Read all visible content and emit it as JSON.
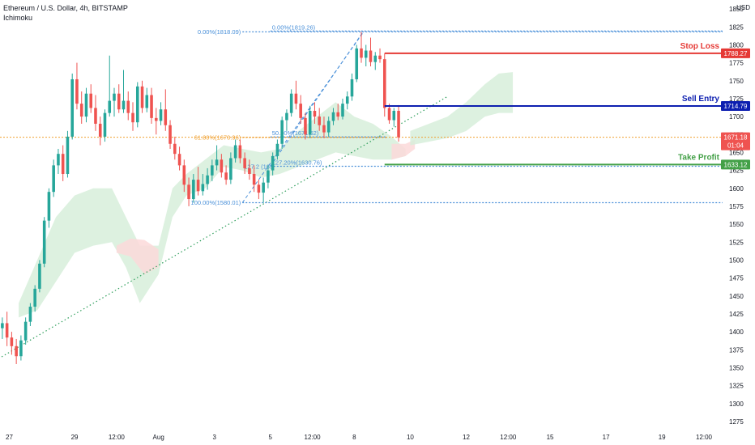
{
  "header": {
    "title": "Ethereum / U.S. Dollar, 4h, BITSTAMP",
    "indicator": "Ichimoku",
    "currency": "USD"
  },
  "colors": {
    "up": "#26a69a",
    "down": "#ef5350",
    "stop_loss": "#e53935",
    "sell_entry": "#0d1fb0",
    "take_profit": "#43a047",
    "fib": "#4a90d9",
    "fib_618": "#f0a030",
    "trend": "#2e9e5b",
    "cloud_bull": "#d7eedb",
    "cloud_bear": "#fcd9d9",
    "axis_text": "#131722",
    "price_tag": "#ef5350"
  },
  "chart_data": {
    "type": "candlestick",
    "y_axis": {
      "range": [
        1262.5,
        1862.5
      ],
      "ticks": [
        1850,
        1825,
        1800,
        1775,
        1750,
        1725,
        1700,
        1675,
        1650,
        1625,
        1600,
        1575,
        1550,
        1525,
        1500,
        1475,
        1450,
        1425,
        1400,
        1375,
        1350,
        1325,
        1300,
        1275
      ]
    },
    "x_axis": {
      "range": [
        0,
        155
      ],
      "ticks": [
        {
          "label": "27",
          "x": 2
        },
        {
          "label": "29",
          "x": 16
        },
        {
          "label": "12:00",
          "x": 25
        },
        {
          "label": "Aug",
          "x": 34
        },
        {
          "label": "3",
          "x": 46
        },
        {
          "label": "5",
          "x": 58
        },
        {
          "label": "12:00",
          "x": 67
        },
        {
          "label": "8",
          "x": 76
        },
        {
          "label": "10",
          "x": 88
        },
        {
          "label": "12",
          "x": 100
        },
        {
          "label": "12:00",
          "x": 109
        },
        {
          "label": "15",
          "x": 118
        },
        {
          "label": "17",
          "x": 130
        },
        {
          "label": "19",
          "x": 142
        },
        {
          "label": "12:00",
          "x": 151
        }
      ]
    },
    "candles": [
      [
        1405,
        1420,
        1390,
        1412
      ],
      [
        1412,
        1428,
        1380,
        1392
      ],
      [
        1392,
        1400,
        1368,
        1380
      ],
      [
        1380,
        1390,
        1355,
        1366
      ],
      [
        1366,
        1395,
        1360,
        1388
      ],
      [
        1388,
        1420,
        1382,
        1414
      ],
      [
        1414,
        1440,
        1408,
        1435
      ],
      [
        1435,
        1465,
        1428,
        1460
      ],
      [
        1460,
        1500,
        1455,
        1495
      ],
      [
        1495,
        1560,
        1490,
        1555
      ],
      [
        1555,
        1600,
        1545,
        1595
      ],
      [
        1595,
        1640,
        1588,
        1632
      ],
      [
        1632,
        1655,
        1620,
        1648
      ],
      [
        1648,
        1660,
        1610,
        1620
      ],
      [
        1620,
        1680,
        1615,
        1672
      ],
      [
        1672,
        1760,
        1668,
        1752
      ],
      [
        1752,
        1775,
        1710,
        1718
      ],
      [
        1718,
        1735,
        1690,
        1700
      ],
      [
        1700,
        1740,
        1692,
        1732
      ],
      [
        1732,
        1745,
        1705,
        1712
      ],
      [
        1712,
        1730,
        1680,
        1690
      ],
      [
        1690,
        1700,
        1660,
        1672
      ],
      [
        1672,
        1710,
        1665,
        1705
      ],
      [
        1705,
        1785,
        1700,
        1722
      ],
      [
        1722,
        1740,
        1700,
        1732
      ],
      [
        1732,
        1745,
        1705,
        1710
      ],
      [
        1710,
        1765,
        1705,
        1722
      ],
      [
        1722,
        1735,
        1695,
        1705
      ],
      [
        1705,
        1720,
        1680,
        1692
      ],
      [
        1692,
        1748,
        1685,
        1742
      ],
      [
        1742,
        1750,
        1705,
        1712
      ],
      [
        1712,
        1740,
        1706,
        1730
      ],
      [
        1730,
        1740,
        1690,
        1698
      ],
      [
        1698,
        1712,
        1675,
        1694
      ],
      [
        1694,
        1720,
        1688,
        1710
      ],
      [
        1710,
        1738,
        1680,
        1688
      ],
      [
        1688,
        1695,
        1655,
        1662
      ],
      [
        1662,
        1672,
        1640,
        1648
      ],
      [
        1648,
        1658,
        1625,
        1632
      ],
      [
        1632,
        1640,
        1595,
        1605
      ],
      [
        1605,
        1615,
        1575,
        1585
      ],
      [
        1585,
        1620,
        1580,
        1612
      ],
      [
        1612,
        1630,
        1590,
        1596
      ],
      [
        1596,
        1620,
        1590,
        1606
      ],
      [
        1606,
        1628,
        1598,
        1618
      ],
      [
        1618,
        1640,
        1610,
        1632
      ],
      [
        1632,
        1660,
        1625,
        1640
      ],
      [
        1640,
        1648,
        1615,
        1622
      ],
      [
        1622,
        1632,
        1605,
        1612
      ],
      [
        1612,
        1650,
        1606,
        1642
      ],
      [
        1642,
        1668,
        1636,
        1660
      ],
      [
        1660,
        1668,
        1635,
        1642
      ],
      [
        1642,
        1650,
        1620,
        1628
      ],
      [
        1628,
        1640,
        1612,
        1620
      ],
      [
        1620,
        1632,
        1595,
        1605
      ],
      [
        1605,
        1612,
        1585,
        1594
      ],
      [
        1594,
        1615,
        1580,
        1608
      ],
      [
        1608,
        1632,
        1600,
        1625
      ],
      [
        1625,
        1650,
        1618,
        1645
      ],
      [
        1645,
        1668,
        1640,
        1662
      ],
      [
        1662,
        1700,
        1655,
        1695
      ],
      [
        1695,
        1710,
        1680,
        1705
      ],
      [
        1705,
        1738,
        1700,
        1732
      ],
      [
        1732,
        1750,
        1710,
        1718
      ],
      [
        1718,
        1730,
        1690,
        1698
      ],
      [
        1698,
        1705,
        1668,
        1675
      ],
      [
        1675,
        1715,
        1670,
        1708
      ],
      [
        1708,
        1720,
        1690,
        1700
      ],
      [
        1700,
        1712,
        1680,
        1688
      ],
      [
        1688,
        1700,
        1670,
        1678
      ],
      [
        1678,
        1700,
        1672,
        1694
      ],
      [
        1694,
        1712,
        1688,
        1706
      ],
      [
        1706,
        1718,
        1695,
        1700
      ],
      [
        1700,
        1725,
        1696,
        1718
      ],
      [
        1718,
        1735,
        1710,
        1728
      ],
      [
        1728,
        1760,
        1722,
        1752
      ],
      [
        1752,
        1800,
        1748,
        1795
      ],
      [
        1795,
        1818,
        1775,
        1782
      ],
      [
        1782,
        1800,
        1770,
        1792
      ],
      [
        1792,
        1810,
        1770,
        1776
      ],
      [
        1776,
        1790,
        1765,
        1785
      ],
      [
        1785,
        1795,
        1775,
        1780
      ],
      [
        1780,
        1788,
        1700,
        1712
      ],
      [
        1712,
        1718,
        1690,
        1695
      ],
      [
        1695,
        1712,
        1686,
        1708
      ],
      [
        1708,
        1716,
        1665,
        1671
      ]
    ],
    "annotations": {
      "stop_loss": {
        "label": "Stop Loss",
        "price": 1788.27,
        "tag": "1788.27"
      },
      "sell_entry": {
        "label": "Sell Entry",
        "price": 1714.79,
        "tag": "1714.79"
      },
      "take_profit": {
        "label": "Take Profit",
        "price": 1633.12,
        "tag": "1633.12"
      },
      "last_price": {
        "price": 1671.18,
        "tag": "1671.18",
        "countdown": "01:04"
      }
    },
    "fibonacci": [
      {
        "label": "0.00%(1818.09)",
        "price": 1818.09,
        "x_from": 52,
        "x_to": 155
      },
      {
        "label": "61.80%(1670.96)",
        "price": 1670.96,
        "x_from": 52,
        "x_to": 83
      },
      {
        "label": "100.00%(1580.01)",
        "price": 1580.01,
        "x_from": 52,
        "x_to": 155
      }
    ],
    "fibonacci_ext": [
      {
        "label": "0.00%(1819.26)",
        "price": 1819.26,
        "x_from": 58,
        "x_to": 155
      },
      {
        "label": "50.00%(1671.62)",
        "price": 1671.62,
        "x_from": 58,
        "x_to": 83
      },
      {
        "label": "127.20%(1630.76)",
        "price": 1630.76,
        "x_from": 58,
        "x_to": 155
      }
    ],
    "fib_mid_label": "61.8",
    "fib_ext_left_labels": [
      "127.2",
      "(163"
    ],
    "trendline": {
      "x1": -1,
      "y1": 1360,
      "x2": 96,
      "y2": 1728
    },
    "cloud_bull": [
      [
        4,
        1440,
        1420
      ],
      [
        8,
        1500,
        1430
      ],
      [
        12,
        1560,
        1470
      ],
      [
        16,
        1590,
        1510
      ],
      [
        20,
        1600,
        1520
      ],
      [
        24,
        1600,
        1525
      ],
      [
        27,
        1560,
        1490
      ],
      [
        30,
        1520,
        1440
      ],
      [
        34,
        1520,
        1480
      ],
      [
        37,
        1600,
        1560
      ],
      [
        40,
        1620,
        1590
      ],
      [
        44,
        1640,
        1600
      ],
      [
        48,
        1660,
        1630
      ],
      [
        52,
        1655,
        1625
      ],
      [
        56,
        1650,
        1615
      ],
      [
        60,
        1655,
        1620
      ],
      [
        64,
        1680,
        1630
      ],
      [
        68,
        1700,
        1640
      ],
      [
        72,
        1720,
        1650
      ],
      [
        76,
        1700,
        1645
      ],
      [
        80,
        1690,
        1640
      ],
      [
        84,
        1672,
        1640
      ],
      [
        87,
        1655,
        1645
      ]
    ],
    "cloud_bear": [
      [
        25,
        1520,
        1510
      ],
      [
        28,
        1530,
        1505
      ],
      [
        31,
        1528,
        1480
      ],
      [
        34,
        1515,
        1490
      ]
    ],
    "cloud_bear2": [
      [
        84,
        1662,
        1640
      ],
      [
        87,
        1662,
        1645
      ],
      [
        89,
        1668,
        1655
      ]
    ],
    "cloud_future": [
      [
        88,
        1680,
        1660
      ],
      [
        92,
        1690,
        1665
      ],
      [
        96,
        1700,
        1670
      ],
      [
        100,
        1720,
        1680
      ],
      [
        104,
        1745,
        1700
      ],
      [
        107,
        1760,
        1705
      ],
      [
        110,
        1762,
        1705
      ]
    ]
  }
}
